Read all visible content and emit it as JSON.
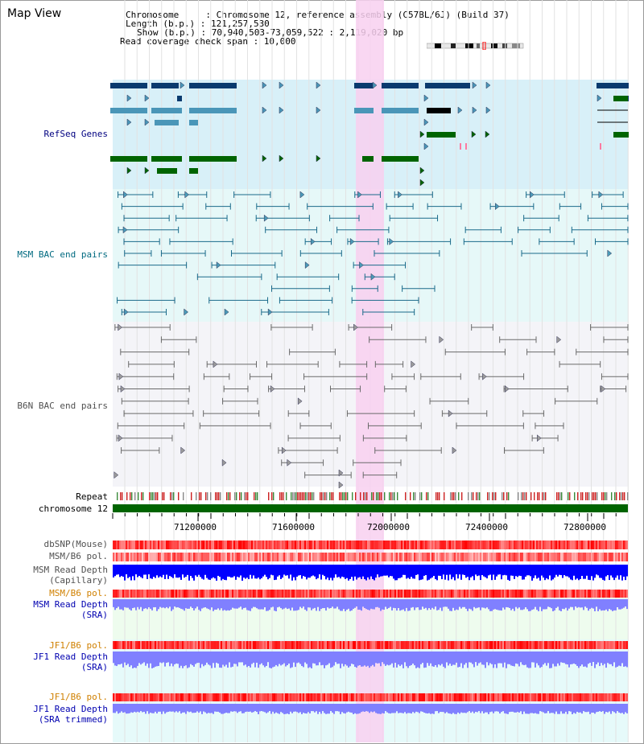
{
  "header": {
    "title": "Map View",
    "lines": [
      "Chromosome     : Chromosome 12, reference assembly (C57BL/6J) (Build 37)",
      "Length (b.p.) : 121,257,530",
      "Show (b.p.) : 70,940,503-73,059,522 : 2,119,020 bp",
      "Read coverage check span : 10,000"
    ]
  },
  "tracks": {
    "refseq_label": "RefSeq Genes",
    "msm_bac_label": "MSM BAC end pairs",
    "b6n_bac_label": "B6N BAC end pairs",
    "repeat_label": "Repeat",
    "chromosome_label": "chromosome 12",
    "dbsnp_label": "dbSNP(Mouse)",
    "msm_b6_pol_label": "MSM/B6 pol.",
    "msm_depth_cap_label_1": "MSM Read Depth",
    "msm_depth_cap_label_2": "(Capillary)",
    "msm_b6_pol2_label": "MSM/B6 pol.",
    "msm_depth_sra_label_1": "MSM Read Depth",
    "msm_depth_sra_label_2": "(SRA)",
    "jf1_pol_label": "JF1/B6 pol.",
    "jf1_depth_sra_label_1": "JF1 Read Depth",
    "jf1_depth_sra_label_2": "(SRA)",
    "jf1_pol2_label": "JF1/B6 pol.",
    "jf1_depth_trim_label_1": "JF1 Read Depth",
    "jf1_depth_trim_label_2": "(SRA trimmed)"
  },
  "axis": {
    "ticks": [
      "71200000",
      "71600000",
      "72000000",
      "72400000",
      "72800000"
    ]
  },
  "colors": {
    "refseq_bg": "#d8f0f8",
    "msm_bg": "#e6f8f8",
    "b6n_bg": "#f4f4f8",
    "highlight": "#f8d0f0",
    "gene_navy": "#0a3a6e",
    "gene_light": "#4a96b8",
    "gene_green": "#006400",
    "msm_line": "#1a6a8a",
    "b6n_line": "#6a6a6a",
    "chrom_green": "#006400",
    "depth_blue": "#0000ff",
    "depth_violet": "#8080ff"
  }
}
